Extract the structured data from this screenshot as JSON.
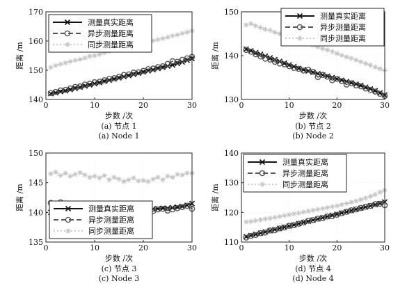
{
  "chart_data": [
    {
      "type": "line",
      "caption_cn": "(a) 节点 1",
      "caption_en": "(a) Node 1",
      "xlabel": "步数 /次",
      "ylabel": "距离 /m",
      "xlim": [
        0,
        30
      ],
      "ylim": [
        140,
        170
      ],
      "xticks": [
        "0",
        "10",
        "20",
        "30"
      ],
      "yticks": [
        "140",
        "150",
        "160",
        "170"
      ],
      "grid": true,
      "legend_position": "top-left",
      "x": [
        1,
        2,
        3,
        4,
        5,
        6,
        7,
        8,
        9,
        10,
        11,
        12,
        13,
        14,
        15,
        16,
        17,
        18,
        19,
        20,
        21,
        22,
        23,
        24,
        25,
        26,
        27,
        28,
        29,
        30
      ],
      "series": [
        {
          "name": "测量真实距离",
          "marker": "x",
          "style": "solid",
          "values": [
            142,
            142.3,
            142.7,
            143,
            143.4,
            143.8,
            144.2,
            144.6,
            145,
            145.4,
            145.8,
            146.2,
            146.6,
            147,
            147.4,
            147.8,
            148.2,
            148.6,
            149,
            149.4,
            149.8,
            150.2,
            150.6,
            151,
            151.4,
            151.8,
            152.3,
            152.8,
            153.4,
            154
          ]
        },
        {
          "name": "异步测量距离",
          "marker": "o",
          "style": "dashed",
          "values": [
            142.2,
            142.6,
            143.1,
            143.3,
            143.8,
            144.3,
            144.5,
            145.1,
            145.4,
            145.9,
            146.1,
            146.6,
            147.1,
            147.3,
            147.8,
            148.4,
            148.6,
            149.2,
            149.3,
            149.8,
            150.4,
            150.6,
            151.1,
            151.4,
            152.2,
            153.1,
            152.9,
            153.6,
            154.1,
            154.6
          ]
        },
        {
          "name": "同步测量距离",
          "marker": "*",
          "style": "dotted",
          "values": [
            151,
            151.6,
            152.1,
            152.5,
            153,
            153.4,
            153.7,
            154.2,
            154.8,
            155,
            155.4,
            156,
            156.5,
            156.9,
            157.1,
            157.8,
            157.9,
            158.3,
            158.8,
            159.2,
            159.6,
            160.1,
            160.5,
            160.9,
            161.3,
            161.8,
            162.1,
            162.6,
            163,
            163.5
          ]
        }
      ]
    },
    {
      "type": "line",
      "caption_cn": "(b) 节点 2",
      "caption_en": "(b) Node 2",
      "xlabel": "步数 /次",
      "ylabel": "距离 /m",
      "xlim": [
        0,
        30
      ],
      "ylim": [
        130,
        150
      ],
      "xticks": [
        "0",
        "10",
        "20",
        "30"
      ],
      "yticks": [
        "130",
        "140",
        "150"
      ],
      "grid": true,
      "legend_position": "top-right",
      "x": [
        1,
        2,
        3,
        4,
        5,
        6,
        7,
        8,
        9,
        10,
        11,
        12,
        13,
        14,
        15,
        16,
        17,
        18,
        19,
        20,
        21,
        22,
        23,
        24,
        25,
        26,
        27,
        28,
        29,
        30
      ],
      "series": [
        {
          "name": "测量真实距离",
          "marker": "x",
          "style": "solid",
          "values": [
            141.5,
            141.1,
            140.7,
            140.3,
            139.9,
            139.5,
            139.1,
            138.7,
            138.3,
            137.9,
            137.5,
            137.1,
            136.8,
            136.5,
            136.2,
            135.9,
            135.6,
            135.3,
            135,
            134.7,
            134.4,
            134.1,
            133.8,
            133.5,
            133.2,
            132.8,
            132.4,
            132,
            131.5,
            131
          ]
        },
        {
          "name": "异步测量距离",
          "marker": "o",
          "style": "dashed",
          "values": [
            141.3,
            140.9,
            140.3,
            139.8,
            139.3,
            139.1,
            138.6,
            138.2,
            138,
            137.6,
            137.2,
            137,
            136.6,
            136.8,
            136.3,
            135.1,
            135.6,
            135.2,
            134.4,
            134.7,
            134.2,
            133.4,
            133.7,
            133.2,
            133,
            132.5,
            132.2,
            131.8,
            131.3,
            130.8
          ]
        },
        {
          "name": "同步测量距离",
          "marker": "*",
          "style": "dotted",
          "values": [
            147,
            147.3,
            146.8,
            146.4,
            146,
            145.8,
            145.3,
            145,
            144.6,
            144.5,
            144,
            143.6,
            143.2,
            142.8,
            142.4,
            142,
            141.6,
            141.3,
            140.9,
            140.5,
            140.1,
            139.7,
            139.4,
            139,
            138.6,
            138.2,
            137.8,
            137.4,
            137,
            136.6
          ]
        }
      ]
    },
    {
      "type": "line",
      "caption_cn": "(c) 节点 3",
      "caption_en": "(c) Node 3",
      "xlabel": "步数 /次",
      "ylabel": "距离 /m",
      "xlim": [
        0,
        30
      ],
      "ylim": [
        135,
        150
      ],
      "xticks": [
        "0",
        "10",
        "20",
        "30"
      ],
      "yticks": [
        "135",
        "140",
        "145",
        "150"
      ],
      "grid": true,
      "legend_position": "bottom-left",
      "x": [
        1,
        2,
        3,
        4,
        5,
        6,
        7,
        8,
        9,
        10,
        11,
        12,
        13,
        14,
        15,
        16,
        17,
        18,
        19,
        20,
        21,
        22,
        23,
        24,
        25,
        26,
        27,
        28,
        29,
        30
      ],
      "series": [
        {
          "name": "测量真实距离",
          "marker": "x",
          "style": "solid",
          "values": [
            140,
            140,
            140.1,
            140.1,
            140.1,
            140.2,
            140.2,
            140.2,
            140.2,
            140.3,
            140.3,
            140.3,
            140.3,
            140.3,
            140.4,
            140.4,
            140.4,
            140.4,
            140.5,
            140.5,
            140.5,
            140.6,
            140.6,
            140.7,
            140.7,
            140.8,
            140.9,
            141,
            141.2,
            141.5
          ]
        },
        {
          "name": "异步测量距离",
          "marker": "o",
          "style": "dashed",
          "values": [
            141.6,
            141.3,
            141.7,
            141.5,
            140.5,
            140.2,
            140.4,
            140.1,
            140.3,
            140.2,
            140.5,
            140.3,
            140.2,
            140,
            140.3,
            140.5,
            140.2,
            140.3,
            140.2,
            140.1,
            140.4,
            140.2,
            140.5,
            140.6,
            140.3,
            140.5,
            140.7,
            140.9,
            141.1,
            140.6
          ]
        },
        {
          "name": "同步测量距离",
          "marker": "*",
          "style": "dotted",
          "values": [
            146.5,
            146.8,
            146.2,
            146.6,
            146.1,
            146.4,
            146.7,
            146.3,
            145.9,
            146.1,
            145.8,
            146.2,
            145.5,
            145.9,
            145.6,
            145.2,
            145.5,
            145.8,
            145.3,
            145.4,
            145.2,
            145.6,
            145.9,
            145.5,
            146.1,
            145.9,
            146.4,
            146.3,
            146.6,
            146.6
          ]
        }
      ]
    },
    {
      "type": "line",
      "caption_cn": "(d) 节点 4",
      "caption_en": "(d) Node 4",
      "xlabel": "步数 /次",
      "ylabel": "距离 /m",
      "xlim": [
        0,
        30
      ],
      "ylim": [
        110,
        140
      ],
      "xticks": [
        "0",
        "10",
        "20",
        "30"
      ],
      "yticks": [
        "110",
        "120",
        "130",
        "140"
      ],
      "grid": true,
      "legend_position": "top-left",
      "x": [
        1,
        2,
        3,
        4,
        5,
        6,
        7,
        8,
        9,
        10,
        11,
        12,
        13,
        14,
        15,
        16,
        17,
        18,
        19,
        20,
        21,
        22,
        23,
        24,
        25,
        26,
        27,
        28,
        29,
        30
      ],
      "series": [
        {
          "name": "测量真实距离",
          "marker": "x",
          "style": "solid",
          "values": [
            111.8,
            112.2,
            112.6,
            113,
            113.4,
            113.8,
            114.2,
            114.6,
            115,
            115.4,
            115.8,
            116.2,
            116.6,
            117,
            117.4,
            117.8,
            118.2,
            118.6,
            119,
            119.4,
            119.8,
            120.2,
            120.6,
            121,
            121.4,
            121.8,
            122.2,
            122.6,
            123,
            123.5
          ]
        },
        {
          "name": "异步测量距离",
          "marker": "o",
          "style": "dashed",
          "values": [
            111.5,
            112.1,
            112.4,
            113,
            113.2,
            113.9,
            114,
            114.6,
            114.9,
            115.5,
            115.7,
            116.2,
            116.6,
            117.2,
            117.4,
            117.9,
            118.1,
            118.6,
            118.7,
            119.2,
            119.7,
            120.2,
            120.7,
            121,
            121.5,
            121.9,
            122.2,
            122.8,
            122.9,
            122.4
          ]
        },
        {
          "name": "同步测量距离",
          "marker": "*",
          "style": "dotted",
          "values": [
            116.8,
            116.9,
            117.2,
            117.5,
            117.8,
            118,
            118.3,
            118.6,
            118.9,
            119.2,
            119.5,
            119.8,
            120.1,
            120.4,
            120.7,
            121,
            121.3,
            121.6,
            121.9,
            122.2,
            122.6,
            123,
            123.4,
            123.8,
            124.3,
            124.8,
            125.4,
            126,
            126.8,
            127.5
          ]
        }
      ]
    }
  ]
}
